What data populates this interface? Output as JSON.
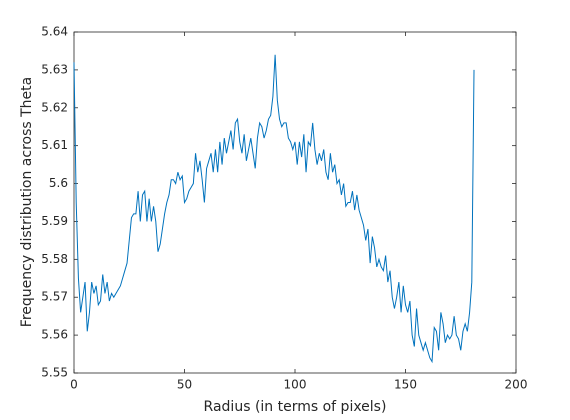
{
  "chart_data": {
    "type": "line",
    "x_label": "Radius (in terms of pixels)",
    "y_label": "Frequency distribution across Theta",
    "x": [
      0,
      1,
      2,
      3,
      4,
      5,
      6,
      7,
      8,
      9,
      10,
      11,
      12,
      13,
      14,
      15,
      16,
      17,
      18,
      19,
      20,
      21,
      22,
      23,
      24,
      25,
      26,
      27,
      28,
      29,
      30,
      31,
      32,
      33,
      34,
      35,
      36,
      37,
      38,
      39,
      40,
      41,
      42,
      43,
      44,
      45,
      46,
      47,
      48,
      49,
      50,
      51,
      52,
      53,
      54,
      55,
      56,
      57,
      58,
      59,
      60,
      61,
      62,
      63,
      64,
      65,
      66,
      67,
      68,
      69,
      70,
      71,
      72,
      73,
      74,
      75,
      76,
      77,
      78,
      79,
      80,
      81,
      82,
      83,
      84,
      85,
      86,
      87,
      88,
      89,
      90,
      91,
      92,
      93,
      94,
      95,
      96,
      97,
      98,
      99,
      100,
      101,
      102,
      103,
      104,
      105,
      106,
      107,
      108,
      109,
      110,
      111,
      112,
      113,
      114,
      115,
      116,
      117,
      118,
      119,
      120,
      121,
      122,
      123,
      124,
      125,
      126,
      127,
      128,
      129,
      130,
      131,
      132,
      133,
      134,
      135,
      136,
      137,
      138,
      139,
      140,
      141,
      142,
      143,
      144,
      145,
      146,
      147,
      148,
      149,
      150,
      151,
      152,
      153,
      154,
      155,
      156,
      157,
      158,
      159,
      160,
      161,
      162,
      163,
      164,
      165,
      166,
      167,
      168,
      169,
      170,
      171,
      172,
      173,
      174,
      175,
      176,
      177,
      178,
      179,
      180,
      181
    ],
    "series": [
      {
        "color": "#0072bd",
        "values": [
          5.632,
          5.595,
          5.575,
          5.566,
          5.57,
          5.574,
          5.561,
          5.566,
          5.574,
          5.571,
          5.573,
          5.568,
          5.569,
          5.576,
          5.571,
          5.574,
          5.569,
          5.571,
          5.57,
          5.571,
          5.572,
          5.573,
          5.575,
          5.577,
          5.579,
          5.585,
          5.591,
          5.592,
          5.592,
          5.598,
          5.59,
          5.597,
          5.598,
          5.59,
          5.596,
          5.59,
          5.594,
          5.59,
          5.582,
          5.584,
          5.588,
          5.592,
          5.595,
          5.597,
          5.601,
          5.601,
          5.6,
          5.603,
          5.601,
          5.602,
          5.595,
          5.596,
          5.598,
          5.599,
          5.6,
          5.608,
          5.603,
          5.606,
          5.601,
          5.595,
          5.604,
          5.606,
          5.608,
          5.603,
          5.609,
          5.603,
          5.611,
          5.605,
          5.612,
          5.608,
          5.611,
          5.614,
          5.609,
          5.616,
          5.617,
          5.611,
          5.608,
          5.613,
          5.606,
          5.609,
          5.612,
          5.608,
          5.604,
          5.612,
          5.616,
          5.615,
          5.612,
          5.614,
          5.617,
          5.618,
          5.623,
          5.634,
          5.622,
          5.617,
          5.615,
          5.616,
          5.616,
          5.612,
          5.611,
          5.609,
          5.611,
          5.605,
          5.611,
          5.607,
          5.613,
          5.603,
          5.611,
          5.61,
          5.616,
          5.609,
          5.605,
          5.608,
          5.606,
          5.609,
          5.603,
          5.601,
          5.608,
          5.603,
          5.605,
          5.6,
          5.601,
          5.597,
          5.6,
          5.594,
          5.595,
          5.595,
          5.598,
          5.593,
          5.597,
          5.593,
          5.591,
          5.589,
          5.585,
          5.588,
          5.579,
          5.586,
          5.583,
          5.578,
          5.58,
          5.578,
          5.577,
          5.581,
          5.574,
          5.577,
          5.57,
          5.567,
          5.57,
          5.574,
          5.566,
          5.573,
          5.568,
          5.566,
          5.569,
          5.56,
          5.557,
          5.567,
          5.56,
          5.558,
          5.556,
          5.558,
          5.556,
          5.554,
          5.553,
          5.562,
          5.561,
          5.556,
          5.566,
          5.563,
          5.558,
          5.56,
          5.559,
          5.56,
          5.565,
          5.56,
          5.559,
          5.556,
          5.561,
          5.563,
          5.561,
          5.566,
          5.574,
          5.63
        ]
      }
    ],
    "xlim": [
      0,
      200
    ],
    "xticks": [
      0,
      50,
      100,
      150,
      200
    ],
    "ylim": [
      5.55,
      5.64
    ],
    "yticks": [
      5.55,
      5.56,
      5.57,
      5.58,
      5.59,
      5.6,
      5.61,
      5.62,
      5.63,
      5.64
    ],
    "grid": false
  }
}
